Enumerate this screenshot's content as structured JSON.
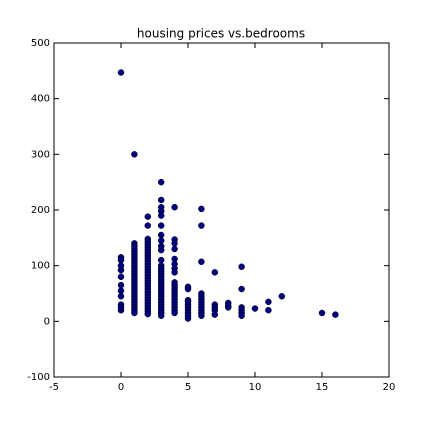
{
  "chart_data": {
    "type": "scatter",
    "title": "housing prices vs.bedrooms",
    "color": "#000080",
    "xlim": [
      -5,
      20
    ],
    "xticks": [
      -5,
      0,
      5,
      10,
      15,
      20
    ],
    "ylim": [
      -100,
      500
    ],
    "yticks": [
      -100,
      0,
      100,
      200,
      300,
      400,
      500
    ],
    "x": [
      0,
      0,
      0,
      0,
      0,
      0,
      0,
      0,
      0,
      0,
      0,
      0,
      1,
      1,
      1,
      1,
      1,
      1,
      1,
      1,
      1,
      1,
      1,
      1,
      1,
      1,
      1,
      1,
      1,
      1,
      1,
      1,
      1,
      1,
      1,
      1,
      1,
      1,
      1,
      2,
      2,
      2,
      2,
      2,
      2,
      2,
      2,
      2,
      2,
      2,
      2,
      2,
      2,
      2,
      2,
      2,
      2,
      2,
      2,
      2,
      2,
      2,
      2,
      2,
      2,
      2,
      2,
      2,
      2,
      3,
      3,
      3,
      3,
      3,
      3,
      3,
      3,
      3,
      3,
      3,
      3,
      3,
      3,
      3,
      3,
      3,
      3,
      3,
      3,
      3,
      3,
      3,
      3,
      3,
      3,
      3,
      3,
      3,
      3,
      4,
      4,
      4,
      4,
      4,
      4,
      4,
      4,
      4,
      4,
      4,
      4,
      4,
      4,
      4,
      4,
      4,
      4,
      4,
      4,
      5,
      5,
      5,
      5,
      5,
      5,
      5,
      5,
      5,
      5,
      6,
      6,
      6,
      6,
      6,
      6,
      6,
      6,
      6,
      6,
      6,
      6,
      7,
      7,
      7,
      7,
      7,
      8,
      8,
      8,
      9,
      9,
      9,
      9,
      9,
      9,
      10,
      11,
      11,
      12,
      15,
      16
    ],
    "y": [
      447,
      115,
      110,
      100,
      92,
      80,
      65,
      55,
      45,
      30,
      25,
      20,
      300,
      140,
      135,
      130,
      125,
      120,
      115,
      110,
      105,
      100,
      95,
      90,
      85,
      80,
      75,
      70,
      65,
      60,
      55,
      50,
      45,
      40,
      35,
      30,
      25,
      20,
      15,
      188,
      172,
      148,
      143,
      138,
      133,
      128,
      123,
      118,
      113,
      108,
      103,
      98,
      93,
      88,
      83,
      78,
      73,
      68,
      63,
      58,
      53,
      48,
      43,
      38,
      33,
      28,
      23,
      18,
      13,
      250,
      218,
      205,
      198,
      190,
      172,
      155,
      145,
      135,
      128,
      110,
      100,
      95,
      90,
      85,
      80,
      75,
      70,
      65,
      60,
      55,
      50,
      45,
      40,
      35,
      30,
      25,
      20,
      15,
      10,
      205,
      147,
      140,
      130,
      112,
      103,
      95,
      88,
      70,
      65,
      60,
      55,
      50,
      45,
      40,
      35,
      30,
      25,
      20,
      15,
      62,
      58,
      38,
      35,
      30,
      25,
      20,
      15,
      10,
      5,
      202,
      172,
      107,
      50,
      45,
      40,
      35,
      30,
      25,
      20,
      15,
      10,
      88,
      30,
      25,
      20,
      12,
      33,
      28,
      25,
      98,
      58,
      25,
      20,
      15,
      10,
      23,
      35,
      20,
      45,
      15,
      12
    ]
  }
}
